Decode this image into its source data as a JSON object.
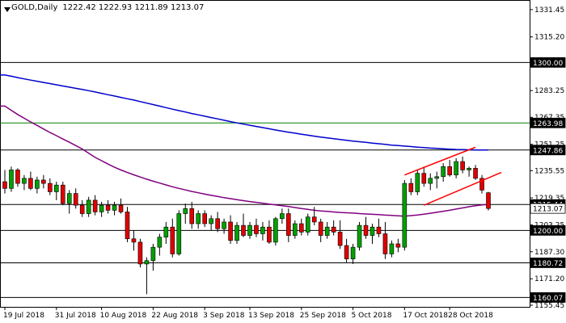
{
  "window": {
    "symbol": "GOLD,Daily",
    "ohlc": "1222.42 1222.93 1211.89 1213.07"
  },
  "colors": {
    "background": "#ffffff",
    "bull_candle": "#00a000",
    "bear_candle": "#e00000",
    "ma_fast": "#0000cc",
    "ma_slow": "#800080",
    "resistance_line": "#008000",
    "channel": "#ff0000",
    "level_line": "#000000"
  },
  "chart_data": {
    "type": "candlestick",
    "ylim": [
      1155.45,
      1335.0
    ],
    "y_ticks": [
      "1331.45",
      "1315.20",
      "1299.35",
      "1283.25",
      "1267.35",
      "1251.25",
      "1235.55",
      "1219.35",
      "1203.25",
      "1187.30",
      "1171.20",
      "1155.45"
    ],
    "x_ticks": [
      "19 Jul 2018",
      "31 Jul 2018",
      "10 Aug 2018",
      "22 Aug 2018",
      "3 Sep 2018",
      "13 Sep 2018",
      "25 Sep 2018",
      "5 Oct 2018",
      "17 Oct 2018",
      "28 Oct 2018"
    ],
    "price_labels": [
      {
        "value": 1300.0,
        "label": "1300.00",
        "style": "dark"
      },
      {
        "value": 1263.98,
        "label": "1263.98",
        "style": "dark"
      },
      {
        "value": 1247.86,
        "label": "1247.86",
        "style": "dark"
      },
      {
        "value": 1215.44,
        "label": "1215.44",
        "style": "dark"
      },
      {
        "value": 1213.07,
        "label": "1213.07",
        "style": "light"
      },
      {
        "value": 1200.0,
        "label": "1200.00",
        "style": "dark"
      },
      {
        "value": 1180.72,
        "label": "1180.72",
        "style": "dark"
      },
      {
        "value": 1160.07,
        "label": "1160.07",
        "style": "dark"
      }
    ],
    "horizontal_levels": [
      {
        "value": 1300.0,
        "color": "#000000"
      },
      {
        "value": 1263.98,
        "color": "#008000"
      },
      {
        "value": 1247.86,
        "color": "#000000"
      },
      {
        "value": 1215.44,
        "color": "#000000"
      },
      {
        "value": 1200.0,
        "color": "#000000"
      },
      {
        "value": 1180.72,
        "color": "#000000"
      },
      {
        "value": 1160.07,
        "color": "#000000"
      }
    ],
    "candles": [
      [
        1229,
        1236,
        1222,
        1225
      ],
      [
        1225,
        1238,
        1223,
        1236
      ],
      [
        1236,
        1237,
        1226,
        1228
      ],
      [
        1228,
        1233,
        1224,
        1231
      ],
      [
        1231,
        1235,
        1224,
        1225
      ],
      [
        1225,
        1232,
        1222,
        1230
      ],
      [
        1230,
        1233,
        1225,
        1228
      ],
      [
        1228,
        1231,
        1221,
        1223
      ],
      [
        1223,
        1229,
        1218,
        1227
      ],
      [
        1227,
        1229,
        1215,
        1216
      ],
      [
        1216,
        1224,
        1210,
        1222
      ],
      [
        1222,
        1225,
        1213,
        1215
      ],
      [
        1215,
        1218,
        1208,
        1210
      ],
      [
        1210,
        1220,
        1208,
        1218
      ],
      [
        1218,
        1221,
        1209,
        1211
      ],
      [
        1211,
        1217,
        1208,
        1215
      ],
      [
        1215,
        1218,
        1210,
        1212
      ],
      [
        1212,
        1217,
        1209,
        1215
      ],
      [
        1215,
        1219,
        1210,
        1211
      ],
      [
        1211,
        1214,
        1193,
        1195
      ],
      [
        1195,
        1200,
        1188,
        1193
      ],
      [
        1193,
        1195,
        1178,
        1180
      ],
      [
        1180,
        1184,
        1162,
        1182
      ],
      [
        1182,
        1192,
        1176,
        1190
      ],
      [
        1190,
        1198,
        1185,
        1196
      ],
      [
        1196,
        1205,
        1192,
        1202
      ],
      [
        1202,
        1207,
        1184,
        1186
      ],
      [
        1186,
        1212,
        1185,
        1210
      ],
      [
        1210,
        1216,
        1204,
        1213
      ],
      [
        1213,
        1217,
        1201,
        1204
      ],
      [
        1204,
        1212,
        1201,
        1210
      ],
      [
        1210,
        1212,
        1202,
        1204
      ],
      [
        1204,
        1209,
        1200,
        1207
      ],
      [
        1207,
        1211,
        1199,
        1201
      ],
      [
        1201,
        1207,
        1198,
        1205
      ],
      [
        1205,
        1209,
        1192,
        1194
      ],
      [
        1194,
        1205,
        1192,
        1203
      ],
      [
        1203,
        1210,
        1196,
        1197
      ],
      [
        1197,
        1205,
        1195,
        1203
      ],
      [
        1203,
        1207,
        1196,
        1198
      ],
      [
        1198,
        1205,
        1194,
        1202
      ],
      [
        1202,
        1206,
        1192,
        1193
      ],
      [
        1193,
        1208,
        1191,
        1207
      ],
      [
        1207,
        1213,
        1204,
        1210
      ],
      [
        1210,
        1213,
        1193,
        1197
      ],
      [
        1197,
        1206,
        1195,
        1204
      ],
      [
        1204,
        1207,
        1197,
        1199
      ],
      [
        1199,
        1210,
        1197,
        1208
      ],
      [
        1208,
        1214,
        1203,
        1205
      ],
      [
        1205,
        1207,
        1193,
        1197
      ],
      [
        1197,
        1205,
        1195,
        1202
      ],
      [
        1202,
        1206,
        1197,
        1199
      ],
      [
        1199,
        1206,
        1189,
        1191
      ],
      [
        1191,
        1195,
        1181,
        1183
      ],
      [
        1183,
        1192,
        1180,
        1190
      ],
      [
        1190,
        1205,
        1188,
        1203
      ],
      [
        1203,
        1208,
        1195,
        1197
      ],
      [
        1197,
        1204,
        1192,
        1202
      ],
      [
        1202,
        1207,
        1196,
        1198
      ],
      [
        1198,
        1205,
        1183,
        1186
      ],
      [
        1186,
        1194,
        1184,
        1192
      ],
      [
        1192,
        1195,
        1187,
        1190
      ],
      [
        1190,
        1230,
        1188,
        1228
      ],
      [
        1228,
        1231,
        1221,
        1223
      ],
      [
        1223,
        1236,
        1221,
        1234
      ],
      [
        1234,
        1238,
        1226,
        1228
      ],
      [
        1228,
        1234,
        1224,
        1231
      ],
      [
        1231,
        1235,
        1225,
        1232
      ],
      [
        1232,
        1240,
        1229,
        1238
      ],
      [
        1238,
        1242,
        1232,
        1233
      ],
      [
        1233,
        1243,
        1231,
        1241
      ],
      [
        1241,
        1244,
        1234,
        1236
      ],
      [
        1236,
        1238,
        1232,
        1237
      ],
      [
        1237,
        1239,
        1230,
        1231
      ],
      [
        1231,
        1233,
        1222,
        1224
      ],
      [
        1222.42,
        1222.93,
        1211.89,
        1213.07
      ]
    ],
    "ma_fast": [
      1292.5,
      1291.8,
      1291.0,
      1290.2,
      1289.5,
      1288.8,
      1288.1,
      1287.4,
      1286.7,
      1286.0,
      1285.3,
      1284.6,
      1283.9,
      1283.2,
      1282.4,
      1281.6,
      1280.8,
      1280.0,
      1279.2,
      1278.4,
      1277.6,
      1276.7,
      1275.8,
      1274.9,
      1274.0,
      1273.1,
      1272.2,
      1271.3,
      1270.5,
      1269.6,
      1268.8,
      1268.0,
      1267.2,
      1266.4,
      1265.6,
      1264.8,
      1264.0,
      1263.3,
      1262.6,
      1261.9,
      1261.2,
      1260.5,
      1259.8,
      1259.1,
      1258.5,
      1257.9,
      1257.3,
      1256.7,
      1256.1,
      1255.6,
      1255.1,
      1254.6,
      1254.1,
      1253.6,
      1253.2,
      1252.8,
      1252.4,
      1252.0,
      1251.6,
      1251.2,
      1250.8,
      1250.5,
      1250.2,
      1249.9,
      1249.6,
      1249.3,
      1249.0,
      1248.8,
      1248.6,
      1248.4,
      1248.2,
      1248.1,
      1248.0,
      1247.9,
      1247.9,
      1247.86
    ],
    "ma_slow": [
      1274.0,
      1271.5,
      1269.0,
      1266.8,
      1264.6,
      1262.5,
      1260.4,
      1258.3,
      1256.4,
      1254.4,
      1252.5,
      1250.5,
      1248.5,
      1246.0,
      1243.5,
      1241.5,
      1239.5,
      1237.6,
      1236.0,
      1234.5,
      1233.1,
      1231.8,
      1230.5,
      1229.3,
      1228.2,
      1227.1,
      1226.0,
      1225.0,
      1224.1,
      1223.2,
      1222.4,
      1221.6,
      1220.9,
      1220.2,
      1219.5,
      1218.9,
      1218.3,
      1217.7,
      1217.2,
      1216.7,
      1216.2,
      1215.7,
      1215.2,
      1214.7,
      1214.2,
      1213.6,
      1213.0,
      1212.5,
      1212.0,
      1211.6,
      1211.3,
      1211.0,
      1210.7,
      1210.5,
      1210.3,
      1210.0,
      1209.8,
      1209.6,
      1209.4,
      1209.1,
      1208.9,
      1208.7,
      1208.5,
      1208.8,
      1209.2,
      1209.7,
      1210.2,
      1210.8,
      1211.4,
      1212.0,
      1212.7,
      1213.4,
      1214.1,
      1214.7,
      1215.2,
      1215.44
    ],
    "channel_lines": [
      {
        "from": [
          62,
          1233.0
        ],
        "to": [
          73,
          1249.5
        ]
      },
      {
        "from": [
          65,
          1215.0
        ],
        "to": [
          77,
          1234.5
        ]
      }
    ]
  }
}
